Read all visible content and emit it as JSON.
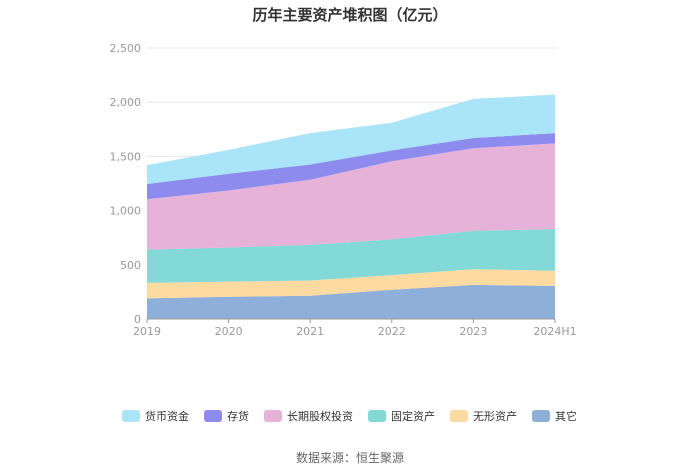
{
  "chart_data": {
    "type": "area",
    "stacked": true,
    "title": "历年主要资产堆积图（亿元）",
    "categories": [
      "2019",
      "2020",
      "2021",
      "2022",
      "2023",
      "2024H1"
    ],
    "ylim": [
      0,
      2500
    ],
    "yticks": [
      "0",
      "500",
      "1,000",
      "1,500",
      "2,000",
      "2,500"
    ],
    "ytick_values": [
      0,
      500,
      1000,
      1500,
      2000,
      2500
    ],
    "legend_position": "bottom",
    "series": [
      {
        "name": "其它",
        "color": "#8fafdb",
        "values": [
          190,
          205,
          215,
          270,
          315,
          305
        ]
      },
      {
        "name": "无形资产",
        "color": "#fddba0",
        "values": [
          145,
          140,
          140,
          135,
          145,
          140
        ]
      },
      {
        "name": "固定资产",
        "color": "#83d8d8",
        "values": [
          305,
          315,
          330,
          330,
          355,
          385
        ]
      },
      {
        "name": "长期股权投资",
        "color": "#e6b2d8",
        "values": [
          465,
          525,
          600,
          720,
          760,
          790
        ]
      },
      {
        "name": "存货",
        "color": "#8d8bee",
        "values": [
          140,
          155,
          140,
          100,
          95,
          95
        ]
      },
      {
        "name": "货币资金",
        "color": "#a9e4f9",
        "values": [
          175,
          220,
          290,
          255,
          360,
          355
        ]
      }
    ],
    "legend_order": [
      "货币资金",
      "存货",
      "长期股权投资",
      "固定资产",
      "无形资产",
      "其它"
    ]
  },
  "footer": {
    "source": "数据来源：恒生聚源"
  }
}
